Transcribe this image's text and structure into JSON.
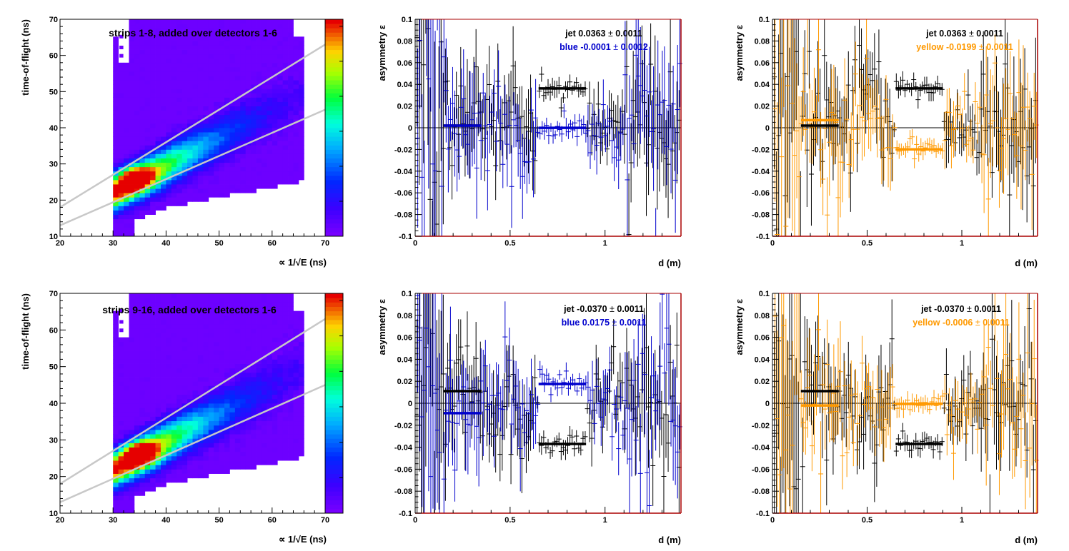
{
  "colors": {
    "jet": "#000000",
    "blue": "#0000cc",
    "yellow": "#ff9900",
    "frame_accent": "#aa0000",
    "cut_lines": "#c8c8c8"
  },
  "chart_data": [
    {
      "type": "heatmap",
      "panel": "top-left",
      "annotation": "strips 1-8, added over detectors 1-6",
      "xlabel": "∝ 1/√E (ns)",
      "ylabel": "time-of-flight (ns)",
      "xlim": [
        20,
        70
      ],
      "ylim": [
        10,
        70
      ],
      "x_ticks": [
        "20",
        "30",
        "40",
        "50",
        "60",
        "70"
      ],
      "y_ticks": [
        "10",
        "20",
        "30",
        "40",
        "50",
        "60",
        "70"
      ],
      "palette": "rainbow",
      "peak": [
        34,
        26
      ],
      "cut_lines": [
        [
          [
            20,
            18
          ],
          [
            70,
            63
          ]
        ],
        [
          [
            20,
            13
          ],
          [
            70,
            45
          ]
        ]
      ]
    },
    {
      "type": "scatter",
      "panel": "top-middle",
      "xlabel": "d (m)",
      "ylabel": "asymmetry ε",
      "xlim": [
        0,
        1.4
      ],
      "ylim": [
        -0.1,
        0.1
      ],
      "x_ticks": [
        "0",
        "0.5",
        "1"
      ],
      "y_ticks": [
        "-0.1",
        "-0.08",
        "-0.06",
        "-0.04",
        "-0.02",
        "0",
        "0.02",
        "0.04",
        "0.06",
        "0.08",
        "0.1"
      ],
      "legend": [
        {
          "name": "jet",
          "value": "0.0363",
          "error": "0.0011",
          "color": "#000000"
        },
        {
          "name": "blue",
          "value": "-0.0001",
          "error": "0.0012",
          "color": "#0000cc"
        }
      ],
      "fits": [
        {
          "series": "jet",
          "x_range": [
            0.15,
            0.35
          ],
          "y": 0.002
        },
        {
          "series": "jet",
          "x_range": [
            0.65,
            0.9
          ],
          "y": 0.0363
        },
        {
          "series": "blue",
          "x_range": [
            0.15,
            0.35
          ],
          "y": 0.002
        },
        {
          "series": "blue",
          "x_range": [
            0.65,
            0.9
          ],
          "y": -0.0001
        }
      ]
    },
    {
      "type": "scatter",
      "panel": "top-right",
      "xlabel": "d (m)",
      "ylabel": "asymmetry ε",
      "xlim": [
        0,
        1.4
      ],
      "ylim": [
        -0.1,
        0.1
      ],
      "x_ticks": [
        "0",
        "0.5",
        "1"
      ],
      "y_ticks": [
        "-0.1",
        "-0.08",
        "-0.06",
        "-0.04",
        "-0.02",
        "0",
        "0.02",
        "0.04",
        "0.06",
        "0.08",
        "0.1"
      ],
      "legend": [
        {
          "name": "jet",
          "value": "0.0363",
          "error": "0.0011",
          "color": "#000000"
        },
        {
          "name": "yellow",
          "value": "-0.0199",
          "error": "0.0011",
          "color": "#ff9900"
        }
      ],
      "fits": [
        {
          "series": "jet",
          "x_range": [
            0.15,
            0.35
          ],
          "y": 0.002
        },
        {
          "series": "jet",
          "x_range": [
            0.65,
            0.9
          ],
          "y": 0.0363
        },
        {
          "series": "yellow",
          "x_range": [
            0.15,
            0.35
          ],
          "y": 0.007
        },
        {
          "series": "yellow",
          "x_range": [
            0.65,
            0.9
          ],
          "y": -0.0199
        }
      ]
    },
    {
      "type": "heatmap",
      "panel": "bottom-left",
      "annotation": "strips 9-16, added over detectors 1-6",
      "xlabel": "∝ 1/√E (ns)",
      "ylabel": "time-of-flight (ns)",
      "xlim": [
        20,
        70
      ],
      "ylim": [
        10,
        70
      ],
      "x_ticks": [
        "20",
        "30",
        "40",
        "50",
        "60",
        "70"
      ],
      "y_ticks": [
        "10",
        "20",
        "30",
        "40",
        "50",
        "60",
        "70"
      ],
      "palette": "rainbow",
      "peak": [
        35,
        26
      ],
      "cut_lines": [
        [
          [
            20,
            18
          ],
          [
            70,
            63
          ]
        ],
        [
          [
            20,
            13
          ],
          [
            70,
            45
          ]
        ]
      ]
    },
    {
      "type": "scatter",
      "panel": "bottom-middle",
      "xlabel": "d (m)",
      "ylabel": "asymmetry ε",
      "xlim": [
        0,
        1.4
      ],
      "ylim": [
        -0.1,
        0.1
      ],
      "x_ticks": [
        "0",
        "0.5",
        "1"
      ],
      "y_ticks": [
        "-0.1",
        "-0.08",
        "-0.06",
        "-0.04",
        "-0.02",
        "0",
        "0.02",
        "0.04",
        "0.06",
        "0.08",
        "0.1"
      ],
      "legend": [
        {
          "name": "jet",
          "value": "-0.0370",
          "error": "0.0011",
          "color": "#000000"
        },
        {
          "name": "blue",
          "value": "0.0175",
          "error": "0.0011",
          "color": "#0000cc"
        }
      ],
      "fits": [
        {
          "series": "jet",
          "x_range": [
            0.15,
            0.35
          ],
          "y": 0.011
        },
        {
          "series": "jet",
          "x_range": [
            0.65,
            0.9
          ],
          "y": -0.037
        },
        {
          "series": "blue",
          "x_range": [
            0.15,
            0.35
          ],
          "y": -0.009
        },
        {
          "series": "blue",
          "x_range": [
            0.65,
            0.9
          ],
          "y": 0.0175
        }
      ]
    },
    {
      "type": "scatter",
      "panel": "bottom-right",
      "xlabel": "d (m)",
      "ylabel": "asymmetry ε",
      "xlim": [
        0,
        1.4
      ],
      "ylim": [
        -0.1,
        0.1
      ],
      "x_ticks": [
        "0",
        "0.5",
        "1"
      ],
      "y_ticks": [
        "-0.1",
        "-0.08",
        "-0.06",
        "-0.04",
        "-0.02",
        "0",
        "0.02",
        "0.04",
        "0.06",
        "0.08",
        "0.1"
      ],
      "legend": [
        {
          "name": "jet",
          "value": "-0.0370",
          "error": "0.0011",
          "color": "#000000"
        },
        {
          "name": "yellow",
          "value": "-0.0006",
          "error": "0.0011",
          "color": "#ff9900"
        }
      ],
      "fits": [
        {
          "series": "jet",
          "x_range": [
            0.15,
            0.35
          ],
          "y": 0.011
        },
        {
          "series": "jet",
          "x_range": [
            0.65,
            0.9
          ],
          "y": -0.037
        },
        {
          "series": "yellow",
          "x_range": [
            0.15,
            0.35
          ],
          "y": -0.002
        },
        {
          "series": "yellow",
          "x_range": [
            0.65,
            0.9
          ],
          "y": -0.0006
        }
      ]
    }
  ]
}
